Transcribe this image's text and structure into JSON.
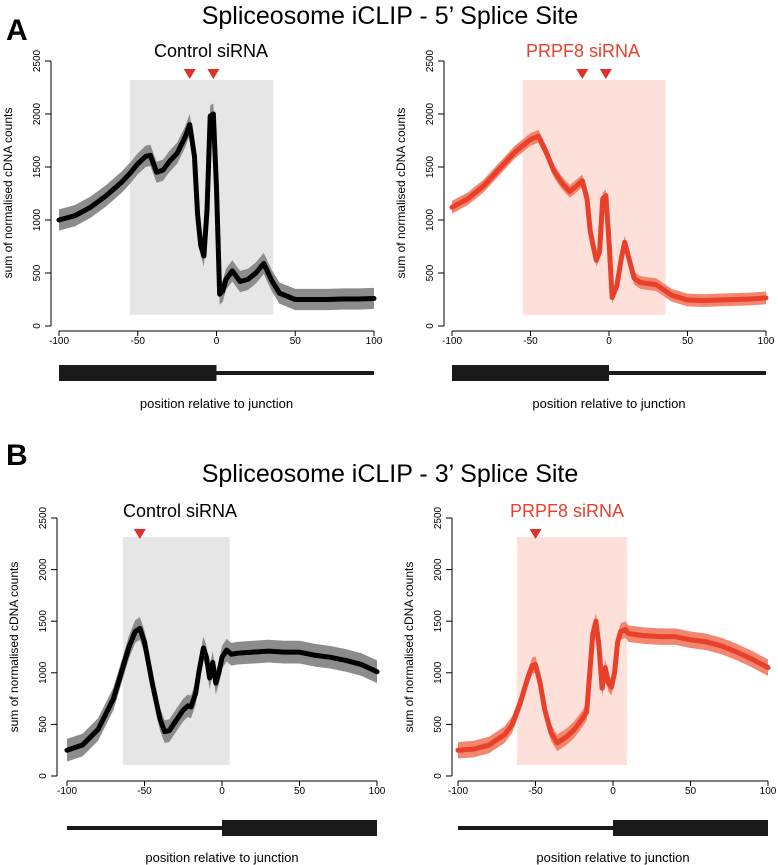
{
  "figure": {
    "panel_a": {
      "letter": "A",
      "title": "Spliceosome iCLIP -  5’ Splice Site"
    },
    "panel_b": {
      "letter": "B",
      "title": "Spliceosome iCLIP -  3’ Splice Site"
    }
  },
  "colors": {
    "control_line": "#000000",
    "control_band": "#8c8c8c",
    "control_shade": "#e6e6e6",
    "control_title": "#000000",
    "prpf8_line": "#e8402a",
    "prpf8_band": "#f3866f",
    "prpf8_shade": "#fde0d9",
    "prpf8_title": "#e8402a",
    "marker": "#e0302a",
    "exon_bar": "#1a1a1a"
  },
  "chart_data": [
    {
      "id": "a-control",
      "type": "line",
      "title": "Control siRNA",
      "xlabel": "position relative to junction",
      "ylabel": "sum of normalised cDNA counts",
      "xlim": [
        -100,
        100
      ],
      "ylim": [
        0,
        2500
      ],
      "xticks": [
        -100,
        -50,
        0,
        50,
        100
      ],
      "yticks": [
        0,
        500,
        1000,
        1500,
        2000,
        2500
      ],
      "shaded_region": [
        -55,
        36
      ],
      "markers_x": [
        -17,
        -2
      ],
      "exon_side": "left",
      "x": [
        -100,
        -90,
        -80,
        -70,
        -60,
        -55,
        -50,
        -45,
        -42,
        -38,
        -34,
        -30,
        -25,
        -20,
        -17,
        -14,
        -12,
        -10,
        -8,
        -6,
        -4,
        -2,
        0,
        2,
        4,
        6,
        10,
        15,
        20,
        25,
        30,
        35,
        40,
        50,
        60,
        70,
        80,
        90,
        100
      ],
      "series": [
        {
          "name": "Control siRNA",
          "values": [
            1000,
            1040,
            1120,
            1230,
            1360,
            1440,
            1530,
            1600,
            1610,
            1450,
            1470,
            1550,
            1630,
            1780,
            1900,
            1600,
            1050,
            760,
            660,
            1100,
            1980,
            2000,
            1300,
            300,
            330,
            440,
            520,
            420,
            440,
            500,
            590,
            430,
            310,
            250,
            250,
            250,
            255,
            255,
            260
          ],
          "band": 100
        }
      ]
    },
    {
      "id": "a-prpf8",
      "type": "line",
      "title": "PRPF8 siRNA",
      "xlabel": "position relative to junction",
      "ylabel": "sum of normalised cDNA counts",
      "xlim": [
        -100,
        100
      ],
      "ylim": [
        0,
        2500
      ],
      "xticks": [
        -100,
        -50,
        0,
        50,
        100
      ],
      "yticks": [
        0,
        500,
        1000,
        1500,
        2000,
        2500
      ],
      "shaded_region": [
        -55,
        36
      ],
      "markers_x": [
        -17,
        -2
      ],
      "exon_side": "left",
      "x": [
        -100,
        -90,
        -80,
        -70,
        -60,
        -50,
        -45,
        -40,
        -35,
        -30,
        -25,
        -20,
        -17,
        -14,
        -12,
        -10,
        -8,
        -6,
        -4,
        -2,
        0,
        2,
        5,
        8,
        10,
        13,
        16,
        20,
        25,
        30,
        35,
        40,
        50,
        60,
        70,
        80,
        90,
        100
      ],
      "series": [
        {
          "name": "PRPF8 siRNA",
          "values": [
            1120,
            1200,
            1320,
            1480,
            1640,
            1760,
            1790,
            1640,
            1460,
            1350,
            1270,
            1330,
            1370,
            1200,
            900,
            750,
            620,
            700,
            1200,
            1230,
            800,
            270,
            380,
            650,
            790,
            620,
            450,
            410,
            400,
            390,
            340,
            290,
            245,
            240,
            245,
            250,
            255,
            265
          ],
          "band": 60
        }
      ]
    },
    {
      "id": "b-control",
      "type": "line",
      "title": "Control siRNA",
      "xlabel": "position relative to junction",
      "ylabel": "sum of normalised cDNA counts",
      "xlim": [
        -100,
        100
      ],
      "ylim": [
        0,
        2500
      ],
      "xticks": [
        -100,
        -50,
        0,
        50,
        100
      ],
      "yticks": [
        0,
        500,
        1000,
        1500,
        2000,
        2500
      ],
      "shaded_region": [
        -64,
        5
      ],
      "markers_x": [
        -53
      ],
      "exon_side": "right",
      "x": [
        -100,
        -90,
        -80,
        -70,
        -65,
        -60,
        -56,
        -53,
        -50,
        -45,
        -40,
        -37,
        -34,
        -30,
        -25,
        -22,
        -20,
        -17,
        -15,
        -12,
        -10,
        -8,
        -6,
        -4,
        -2,
        0,
        3,
        6,
        10,
        20,
        30,
        40,
        50,
        60,
        70,
        80,
        90,
        100
      ],
      "series": [
        {
          "name": "Control siRNA",
          "values": [
            250,
            300,
            450,
            750,
            1000,
            1250,
            1400,
            1430,
            1300,
            900,
            550,
            430,
            440,
            530,
            640,
            680,
            670,
            800,
            1000,
            1240,
            1150,
            950,
            1100,
            900,
            1000,
            1150,
            1220,
            1180,
            1190,
            1200,
            1210,
            1200,
            1200,
            1170,
            1150,
            1120,
            1080,
            1010
          ],
          "band": 110
        }
      ]
    },
    {
      "id": "b-prpf8",
      "type": "line",
      "title": "PRPF8 siRNA",
      "xlabel": "position relative to junction",
      "ylabel": "sum of normalised cDNA counts",
      "xlim": [
        -100,
        100
      ],
      "ylim": [
        0,
        2500
      ],
      "xticks": [
        -100,
        -50,
        0,
        50,
        100
      ],
      "yticks": [
        0,
        500,
        1000,
        1500,
        2000,
        2500
      ],
      "shaded_region": [
        -62,
        9
      ],
      "markers_x": [
        -50
      ],
      "exon_side": "right",
      "x": [
        -100,
        -90,
        -80,
        -70,
        -65,
        -60,
        -55,
        -52,
        -50,
        -47,
        -44,
        -40,
        -36,
        -33,
        -30,
        -25,
        -20,
        -17,
        -15,
        -13,
        -11,
        -9,
        -7,
        -5,
        -3,
        -1,
        1,
        3,
        5,
        8,
        10,
        20,
        30,
        40,
        50,
        60,
        70,
        80,
        90,
        100
      ],
      "series": [
        {
          "name": "PRPF8 siRNA",
          "values": [
            250,
            260,
            300,
            400,
            500,
            700,
            950,
            1070,
            1080,
            900,
            640,
            420,
            320,
            350,
            380,
            450,
            550,
            620,
            1000,
            1380,
            1500,
            1250,
            850,
            1050,
            900,
            860,
            1000,
            1300,
            1400,
            1420,
            1380,
            1360,
            1350,
            1350,
            1320,
            1300,
            1260,
            1200,
            1130,
            1050
          ],
          "band": 80
        }
      ]
    }
  ]
}
